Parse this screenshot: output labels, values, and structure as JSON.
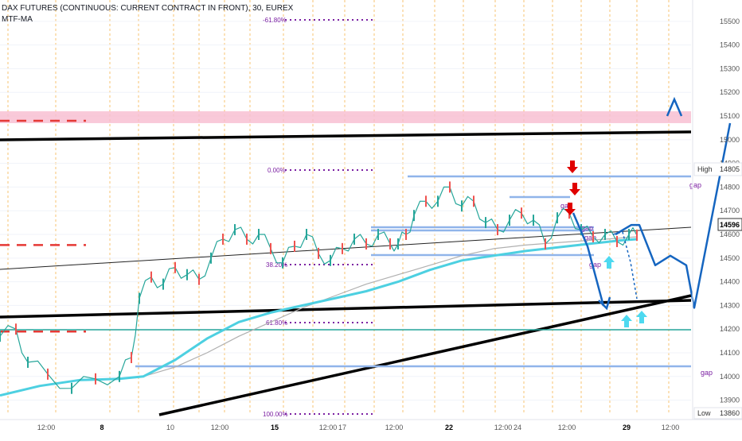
{
  "header": {
    "symbol": "DAX FUTURES (CONTINUOUS: CURRENT CONTRACT IN FRONT), 30, EUREX",
    "indicator": "MTF-MA"
  },
  "chart_data": {
    "type": "line",
    "y_axis": {
      "range": [
        13845,
        15590
      ],
      "ticks": [
        13900,
        14000,
        14100,
        14200,
        14300,
        14400,
        14500,
        14600,
        14700,
        14800,
        14900,
        15000,
        15100,
        15200,
        15300,
        15400,
        15500
      ],
      "position": "right"
    },
    "x_axis": {
      "ticks": [
        "12:00",
        "8",
        "10",
        "12:00",
        "15",
        "12:00",
        "17",
        "12:00",
        "22",
        "12:00",
        "24",
        "12:00",
        "29",
        "12:00"
      ],
      "bold_ticks": [
        "8",
        "15",
        "22",
        "29"
      ]
    },
    "price_labels": {
      "high_label": "High",
      "high_value": "14805",
      "current_value": "14596",
      "low_label": "Low",
      "low_value": "13860"
    },
    "fibonacci_levels": [
      {
        "label": "-61.80%",
        "value": 15480
      },
      {
        "label": "0.00%",
        "value": 14800
      },
      {
        "label": "38.20%",
        "value": 14435
      },
      {
        "label": "61.80%",
        "value": 14210
      },
      {
        "label": "100.00%",
        "value": 13858
      }
    ],
    "gap_labels": [
      "gap",
      "gap",
      "gap",
      "gap",
      "gap",
      "gap"
    ],
    "resistance_zone": [
      15070,
      15120
    ],
    "red_dashed_levels": [
      15080,
      14555,
      14190
    ],
    "price_path": [
      [
        0,
        14170
      ],
      [
        0.02,
        14200
      ],
      [
        0.035,
        14060
      ],
      [
        0.06,
        14010
      ],
      [
        0.09,
        13950
      ],
      [
        0.12,
        13990
      ],
      [
        0.15,
        14000
      ],
      [
        0.165,
        14080
      ],
      [
        0.175,
        14330
      ],
      [
        0.19,
        14420
      ],
      [
        0.205,
        14390
      ],
      [
        0.22,
        14460
      ],
      [
        0.235,
        14430
      ],
      [
        0.25,
        14410
      ],
      [
        0.265,
        14500
      ],
      [
        0.28,
        14580
      ],
      [
        0.295,
        14620
      ],
      [
        0.31,
        14580
      ],
      [
        0.325,
        14600
      ],
      [
        0.34,
        14540
      ],
      [
        0.355,
        14480
      ],
      [
        0.37,
        14550
      ],
      [
        0.385,
        14600
      ],
      [
        0.4,
        14520
      ],
      [
        0.415,
        14490
      ],
      [
        0.43,
        14540
      ],
      [
        0.445,
        14580
      ],
      [
        0.46,
        14560
      ],
      [
        0.475,
        14600
      ],
      [
        0.49,
        14560
      ],
      [
        0.5,
        14560
      ],
      [
        0.51,
        14600
      ],
      [
        0.52,
        14680
      ],
      [
        0.535,
        14740
      ],
      [
        0.55,
        14740
      ],
      [
        0.565,
        14800
      ],
      [
        0.58,
        14720
      ],
      [
        0.595,
        14740
      ],
      [
        0.61,
        14650
      ],
      [
        0.625,
        14620
      ],
      [
        0.64,
        14660
      ],
      [
        0.655,
        14690
      ],
      [
        0.67,
        14660
      ],
      [
        0.685,
        14560
      ],
      [
        0.7,
        14670
      ],
      [
        0.715,
        14690
      ],
      [
        0.73,
        14620
      ],
      [
        0.745,
        14590
      ],
      [
        0.76,
        14600
      ],
      [
        0.775,
        14570
      ],
      [
        0.79,
        14600
      ],
      [
        0.8,
        14596
      ]
    ],
    "ma_fast_path": [
      [
        0,
        13920
      ],
      [
        0.05,
        13960
      ],
      [
        0.1,
        13985
      ],
      [
        0.15,
        13990
      ],
      [
        0.18,
        14000
      ],
      [
        0.22,
        14070
      ],
      [
        0.26,
        14160
      ],
      [
        0.3,
        14230
      ],
      [
        0.34,
        14270
      ],
      [
        0.38,
        14300
      ],
      [
        0.42,
        14330
      ],
      [
        0.46,
        14360
      ],
      [
        0.5,
        14400
      ],
      [
        0.54,
        14450
      ],
      [
        0.58,
        14490
      ],
      [
        0.62,
        14510
      ],
      [
        0.66,
        14530
      ],
      [
        0.7,
        14545
      ],
      [
        0.74,
        14560
      ],
      [
        0.78,
        14575
      ],
      [
        0.8,
        14580
      ]
    ],
    "ma_slow_path": [
      [
        0.18,
        14000
      ],
      [
        0.22,
        14040
      ],
      [
        0.26,
        14100
      ],
      [
        0.3,
        14170
      ],
      [
        0.34,
        14230
      ],
      [
        0.38,
        14290
      ],
      [
        0.42,
        14340
      ],
      [
        0.46,
        14390
      ],
      [
        0.5,
        14430
      ],
      [
        0.54,
        14470
      ],
      [
        0.58,
        14510
      ],
      [
        0.62,
        14540
      ],
      [
        0.66,
        14555
      ],
      [
        0.7,
        14565
      ],
      [
        0.74,
        14575
      ],
      [
        0.78,
        14585
      ],
      [
        0.8,
        14590
      ]
    ],
    "projection_path": [
      [
        0.773,
        14600
      ],
      [
        0.793,
        14640
      ],
      [
        0.803,
        14640
      ],
      [
        0.823,
        14470
      ],
      [
        0.842,
        14510
      ],
      [
        0.862,
        14470
      ],
      [
        0.872,
        14290
      ],
      [
        0.917,
        15070
      ]
    ],
    "grid": true,
    "legend": "none"
  },
  "colors": {
    "price": "#26a69a",
    "ma_fast": "#4dd0e1",
    "ma_slow": "#b0b0b0",
    "projection": "#1565c0",
    "fib": "#7b1fa2",
    "resistance_zone": "#f8bbd0",
    "red_dash": "#e53935",
    "gap_line": "#90b4ea",
    "arrow_down": "#e00000",
    "arrow_up": "#4dd9f0"
  }
}
